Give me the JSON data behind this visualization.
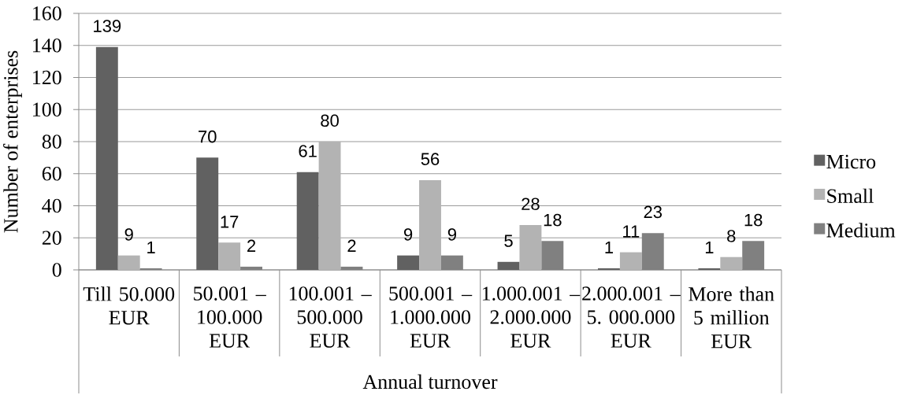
{
  "chart_data": {
    "type": "bar",
    "xlabel": "Annual turnover",
    "ylabel": "Number of enterprises",
    "categories": [
      "Till 50.000 EUR",
      "50.001 – 100.000 EUR",
      "100.001 – 500.000 EUR",
      "500.001 – 1.000.000 EUR",
      "1.000.001 – 2.000.000 EUR",
      "2.000.001 – 5. 000.000 EUR",
      "More than 5 million EUR"
    ],
    "series": [
      {
        "name": "Micro",
        "color": "#616161",
        "values": [
          139,
          70,
          61,
          9,
          5,
          1,
          1
        ]
      },
      {
        "name": "Small",
        "color": "#b3b3b3",
        "values": [
          9,
          17,
          80,
          56,
          28,
          11,
          8
        ]
      },
      {
        "name": "Medium",
        "color": "#808080",
        "values": [
          1,
          2,
          2,
          9,
          18,
          23,
          18
        ]
      }
    ],
    "ylim": [
      0,
      160
    ],
    "yticks": [
      0,
      20,
      40,
      60,
      80,
      100,
      120,
      140,
      160
    ],
    "grid": "y",
    "legend": "right",
    "data_labels": true
  }
}
